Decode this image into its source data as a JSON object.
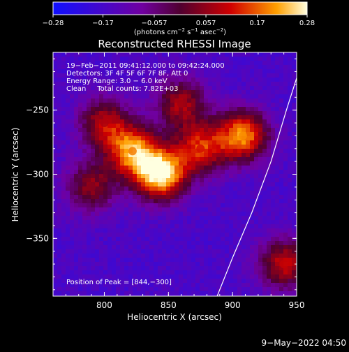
{
  "chart_data": {
    "type": "heatmap",
    "title": "Reconstructed RHESSI Image",
    "xlabel": "Heliocentric X (arcsec)",
    "ylabel": "Heliocentric Y (arcsec)",
    "xlim": [
      760,
      950
    ],
    "ylim": [
      -395,
      -205
    ],
    "x_ticks": [
      800,
      850,
      900,
      950
    ],
    "y_ticks": [
      -250,
      -300,
      -350
    ],
    "colorbar": {
      "min": -0.28,
      "max": 0.28,
      "ticks": [
        -0.28,
        -0.17,
        -0.057,
        0.057,
        0.17,
        0.28
      ],
      "tick_labels": [
        "−0.28",
        "−0.17",
        "−0.057",
        "0.057",
        "0.17",
        "0.28"
      ],
      "units_main": "(photons cm",
      "units_exp1": "−2",
      "units_mid": " s",
      "units_exp2": "−1",
      "units_end": " asec",
      "units_exp3": "−2",
      "units_close": ")"
    },
    "info_lines": [
      "19−Feb−2011 09:41:12.000 to 09:42:24.000",
      "Detectors: 3F 4F 5F 6F 7F 8F, Att 0",
      "Energy Range: 3.0 − 6.0 keV",
      "Clean     Total counts: 7.82E+03"
    ],
    "peak_label": "Position of Peak = [844,−300]",
    "peak": [
      844,
      -300
    ],
    "sources": [
      {
        "x": 844,
        "y": -300,
        "value": 0.28
      },
      {
        "x": 822,
        "y": -282,
        "value": 0.19
      },
      {
        "x": 908,
        "y": -270,
        "value": 0.2
      },
      {
        "x": 875,
        "y": -280,
        "value": 0.12
      },
      {
        "x": 800,
        "y": -260,
        "value": 0.08
      },
      {
        "x": 860,
        "y": -245,
        "value": 0.07
      },
      {
        "x": 940,
        "y": -370,
        "value": 0.1
      },
      {
        "x": 790,
        "y": -310,
        "value": 0.05
      }
    ],
    "limb": [
      [
        888,
        -395
      ],
      [
        900,
        -365
      ],
      [
        915,
        -330
      ],
      [
        930,
        -290
      ],
      [
        942,
        -250
      ],
      [
        950,
        -225
      ]
    ]
  },
  "timestamp": "9−May−2022 04:50"
}
